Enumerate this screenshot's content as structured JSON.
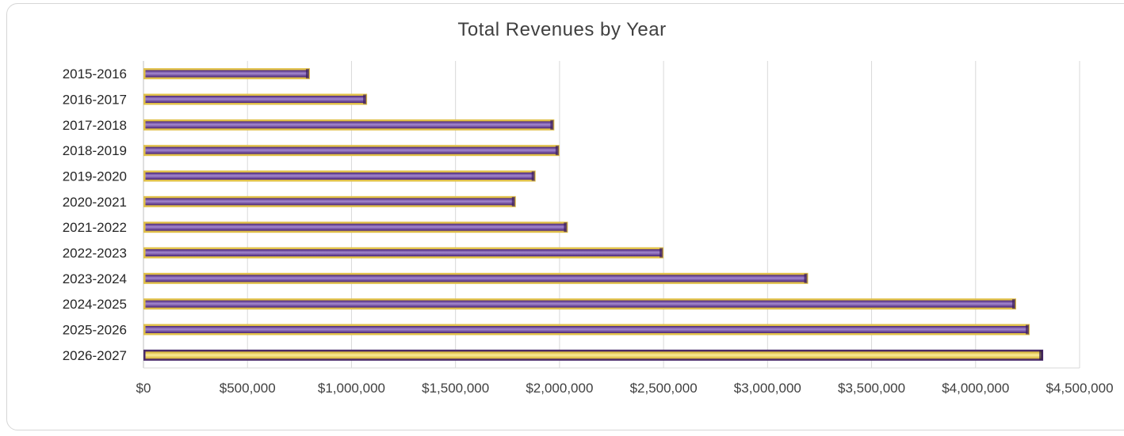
{
  "chart_data": {
    "type": "bar",
    "orientation": "horizontal",
    "title": "Total Revenues by Year",
    "xlabel": "",
    "ylabel": "",
    "categories": [
      "2015-2016",
      "2016-2017",
      "2017-2018",
      "2018-2019",
      "2019-2020",
      "2020-2021",
      "2021-2022",
      "2022-2023",
      "2023-2024",
      "2024-2025",
      "2025-2026",
      "2026-2027"
    ],
    "values": [
      800000,
      1075000,
      1975000,
      2000000,
      1885000,
      1790000,
      2040000,
      2500000,
      3195000,
      4195000,
      4260000,
      4325000
    ],
    "xlim": [
      0,
      4500000
    ],
    "x_ticks": [
      0,
      500000,
      1000000,
      1500000,
      2000000,
      2500000,
      3000000,
      3500000,
      4000000,
      4500000
    ],
    "x_tick_labels": [
      "$0",
      "$500,000",
      "$1,000,000",
      "$1,500,000",
      "$2,000,000",
      "$2,500,000",
      "$3,000,000",
      "$3,500,000",
      "$4,000,000",
      "$4,500,000"
    ],
    "grid": "vertical",
    "legend": "none",
    "colors": {
      "bar_fill": "#6a3fa0",
      "bar_fill_light": "#9a78c8",
      "bar_border": "#e0c04a",
      "bar_fill_last": "#f4df7a",
      "bar_border_last": "#4a2a6a",
      "grid": "#d9d9d9",
      "axis": "#bfbfbf"
    }
  }
}
